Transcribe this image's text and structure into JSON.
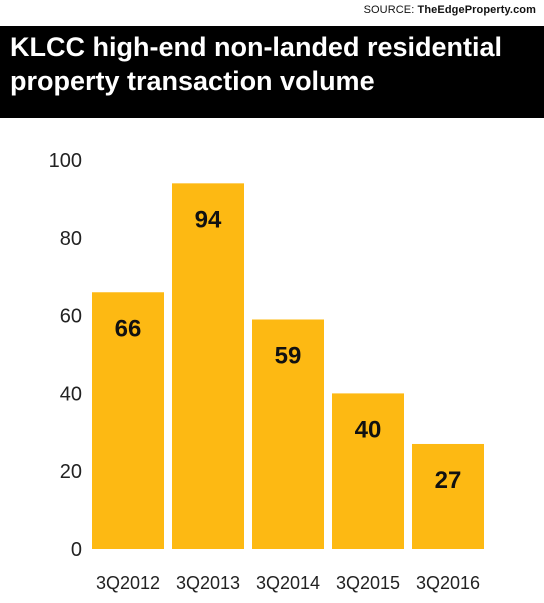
{
  "source": {
    "prefix": "SOURCE:",
    "name": "TheEdgeProperty.com"
  },
  "chart_data": {
    "type": "bar",
    "title": "KLCC high-end non-landed residential property transaction volume",
    "xlabel": "",
    "ylabel": "",
    "categories": [
      "3Q2012",
      "3Q2013",
      "3Q2014",
      "3Q2015",
      "3Q2016"
    ],
    "values": [
      66,
      94,
      59,
      40,
      27
    ],
    "ylim": [
      0,
      100
    ],
    "yticks": [
      0,
      20,
      40,
      60,
      80,
      100
    ],
    "grid": false,
    "bar_color": "#FDB913",
    "data_labels": true
  }
}
